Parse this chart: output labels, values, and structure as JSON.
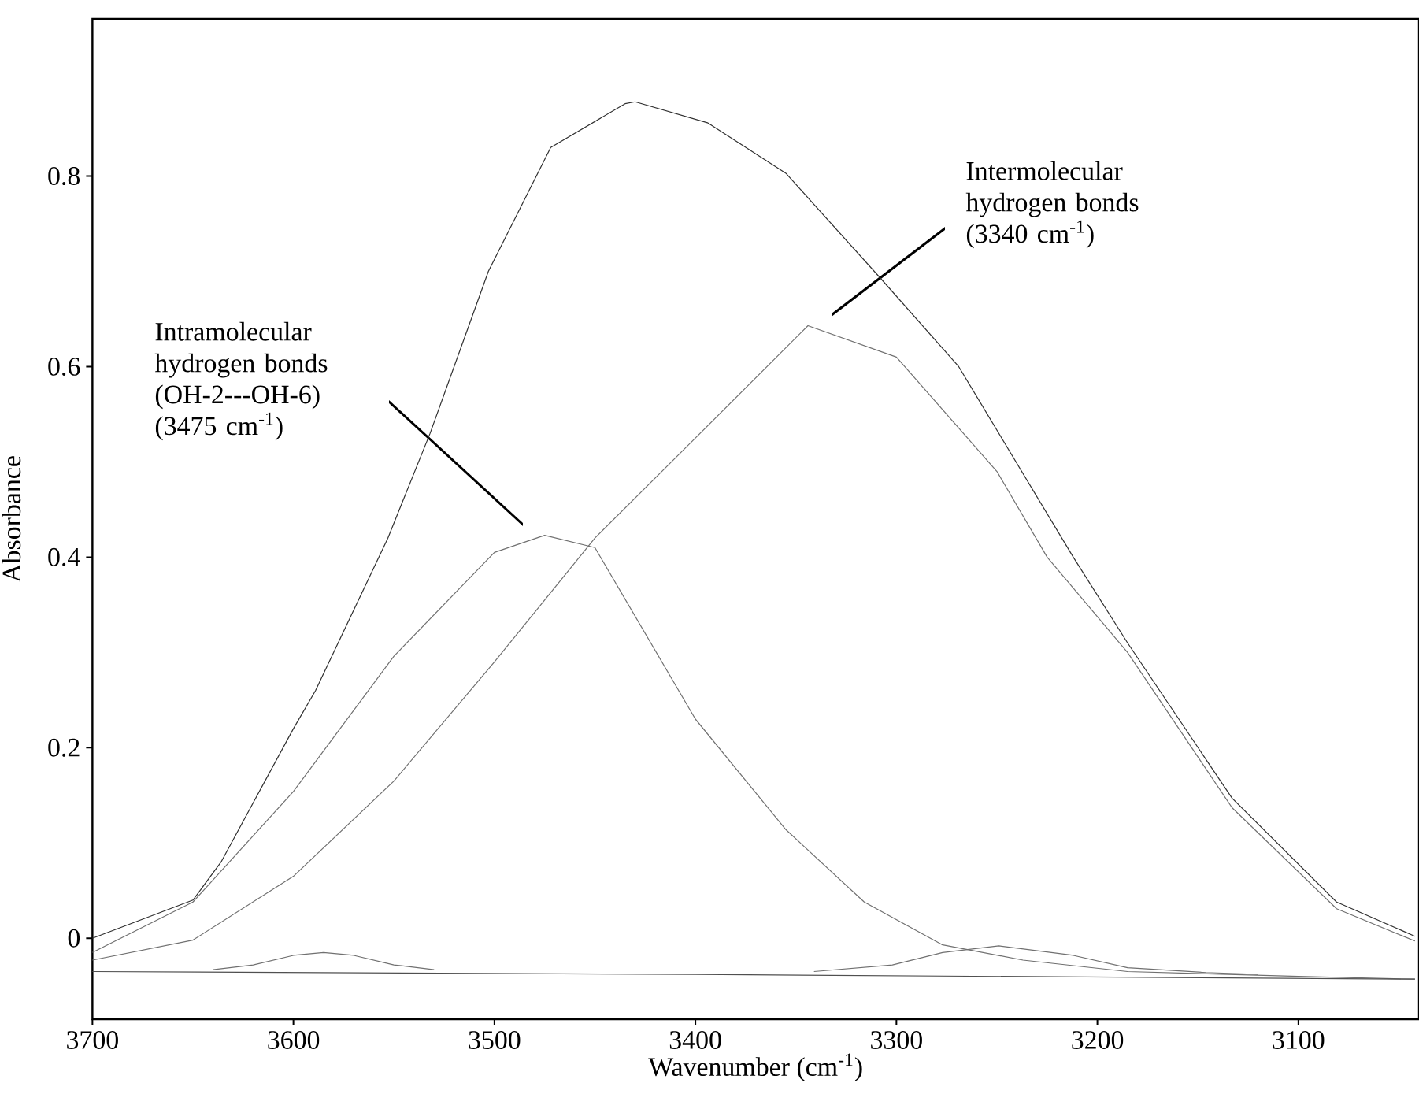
{
  "chart_data": {
    "type": "line",
    "xlabel": "Wavenumber (cm$^{-1}$)",
    "ylabel": "Absorbance",
    "xlim": [
      3700,
      3040
    ],
    "ylim": [
      -0.085,
      0.965
    ],
    "xticks": [
      3700,
      3600,
      3500,
      3400,
      3300,
      3200,
      3100
    ],
    "yticks": [
      0,
      0.2,
      0.4,
      0.6,
      0.8
    ],
    "grid": false,
    "marker": "none",
    "line_style": "solid",
    "series": [
      {
        "color": "#303030",
        "x": [
          3700,
          3650,
          3636,
          3600,
          3589,
          3553,
          3532,
          3503,
          3472,
          3435,
          3430,
          3394,
          3355,
          3308,
          3269,
          3212,
          3185,
          3133,
          3081,
          3042
        ],
        "values": [
          0.0,
          0.04,
          0.08,
          0.22,
          0.26,
          0.42,
          0.53,
          0.7,
          0.83,
          0.876,
          0.878,
          0.856,
          0.803,
          0.693,
          0.6,
          0.4,
          0.31,
          0.147,
          0.038,
          0.002
        ]
      },
      {
        "color": "#707070",
        "x": [
          3700,
          3650,
          3600,
          3550,
          3500,
          3475,
          3450,
          3400,
          3355,
          3316,
          3277,
          3237,
          3185,
          3100,
          3042
        ],
        "values": [
          -0.015,
          0.038,
          0.154,
          0.296,
          0.405,
          0.423,
          0.41,
          0.23,
          0.114,
          0.038,
          -0.007,
          -0.023,
          -0.035,
          -0.04,
          -0.043
        ]
      },
      {
        "color": "#707070",
        "x": [
          3700,
          3650,
          3600,
          3550,
          3500,
          3450,
          3400,
          3344,
          3300,
          3250,
          3225,
          3185,
          3133,
          3081,
          3042
        ],
        "values": [
          -0.023,
          -0.002,
          0.065,
          0.165,
          0.29,
          0.42,
          0.525,
          0.643,
          0.61,
          0.49,
          0.4,
          0.3,
          0.137,
          0.031,
          -0.003
        ]
      },
      {
        "color": "#707070",
        "x": [
          3640,
          3620,
          3600,
          3585,
          3570,
          3550,
          3530
        ],
        "values": [
          -0.033,
          -0.028,
          -0.018,
          -0.015,
          -0.018,
          -0.028,
          -0.033
        ]
      },
      {
        "color": "#707070",
        "x": [
          3341,
          3302,
          3277,
          3249,
          3212,
          3185,
          3146,
          3120
        ],
        "values": [
          -0.035,
          -0.028,
          -0.015,
          -0.008,
          -0.018,
          -0.031,
          -0.036,
          -0.038
        ]
      },
      {
        "color": "#505050",
        "x": [
          3700,
          3400,
          3042
        ],
        "values": [
          -0.035,
          -0.038,
          -0.043
        ]
      }
    ],
    "annotations": [
      "Intramolecular hydrogen bonds (OH-2---OH-6) (3475 cm$^{-1}$)",
      "Intermolecular hydrogen bonds (3340 cm$^{-1}$)"
    ]
  }
}
